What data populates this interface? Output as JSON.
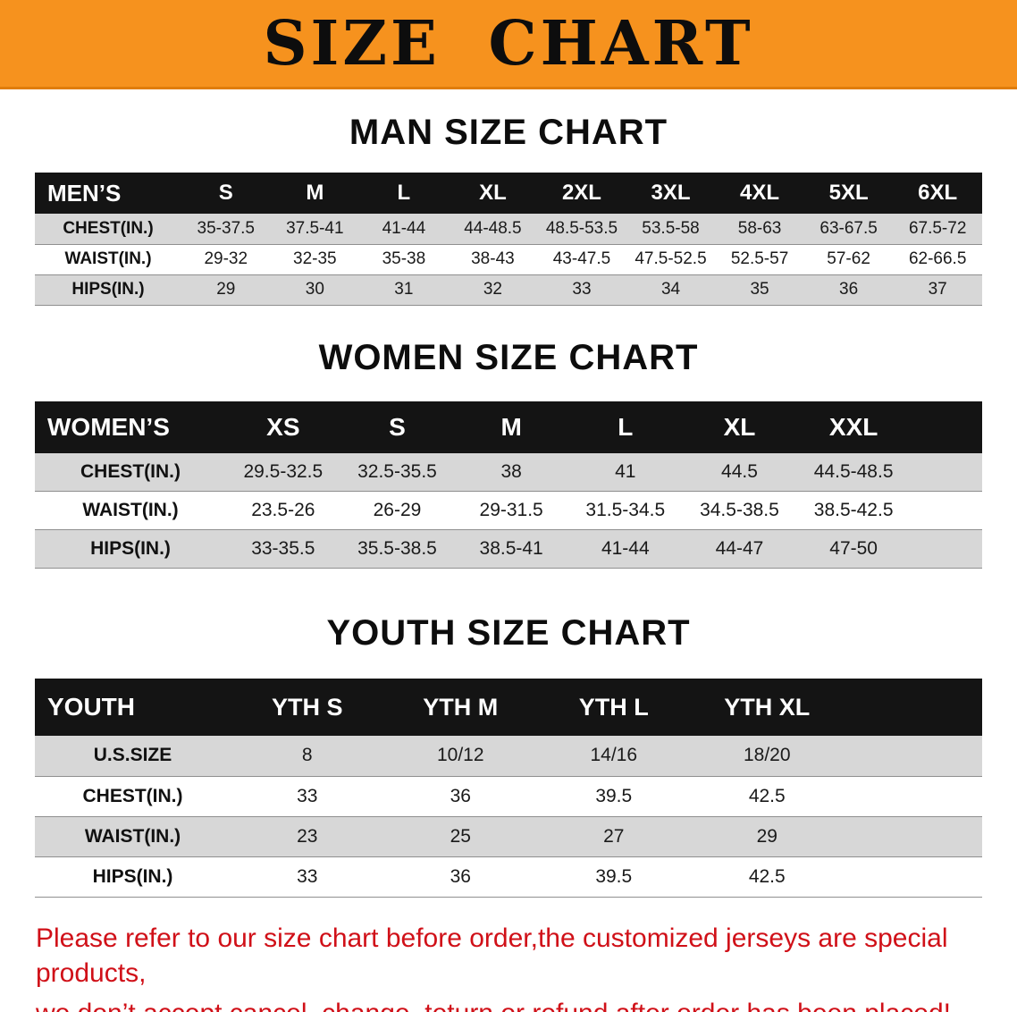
{
  "banner": {
    "title": "SIZE CHART",
    "bg_color": "#f6921e",
    "text_color": "#0d0d0d"
  },
  "sections": [
    {
      "id": "men",
      "heading": "MAN SIZE CHART",
      "table": {
        "header": [
          "MEN’S",
          "S",
          "M",
          "L",
          "XL",
          "2XL",
          "3XL",
          "4XL",
          "5XL",
          "6XL"
        ],
        "rows": [
          {
            "label": "CHEST(IN.)",
            "values": [
              "35-37.5",
              "37.5-41",
              "41-44",
              "44-48.5",
              "48.5-53.5",
              "53.5-58",
              "58-63",
              "63-67.5",
              "67.5-72"
            ]
          },
          {
            "label": "WAIST(IN.)",
            "values": [
              "29-32",
              "32-35",
              "35-38",
              "38-43",
              "43-47.5",
              "47.5-52.5",
              "52.5-57",
              "57-62",
              "62-66.5"
            ]
          },
          {
            "label": "HIPS(IN.)",
            "values": [
              "29",
              "30",
              "31",
              "32",
              "33",
              "34",
              "35",
              "36",
              "37"
            ]
          }
        ]
      }
    },
    {
      "id": "women",
      "heading": "WOMEN SIZE CHART",
      "table": {
        "header": [
          "WOMEN’S",
          "XS",
          "S",
          "M",
          "L",
          "XL",
          "XXL"
        ],
        "rows": [
          {
            "label": "CHEST(IN.)",
            "values": [
              "29.5-32.5",
              "32.5-35.5",
              "38",
              "41",
              "44.5",
              "44.5-48.5"
            ]
          },
          {
            "label": "WAIST(IN.)",
            "values": [
              "23.5-26",
              "26-29",
              "29-31.5",
              "31.5-34.5",
              "34.5-38.5",
              "38.5-42.5"
            ]
          },
          {
            "label": "HIPS(IN.)",
            "values": [
              "33-35.5",
              "35.5-38.5",
              "38.5-41",
              "41-44",
              "44-47",
              "47-50"
            ]
          }
        ]
      }
    },
    {
      "id": "youth",
      "heading": "YOUTH SIZE CHART",
      "table": {
        "header": [
          "YOUTH",
          "YTH S",
          "YTH M",
          "YTH L",
          "YTH XL"
        ],
        "rows": [
          {
            "label": "U.S.SIZE",
            "values": [
              "8",
              "10/12",
              "14/16",
              "18/20"
            ]
          },
          {
            "label": "CHEST(IN.)",
            "values": [
              "33",
              "36",
              "39.5",
              "42.5"
            ]
          },
          {
            "label": "WAIST(IN.)",
            "values": [
              "23",
              "25",
              "27",
              "29"
            ]
          },
          {
            "label": "HIPS(IN.)",
            "values": [
              "33",
              "36",
              "39.5",
              "42.5"
            ]
          }
        ]
      }
    }
  ],
  "footer": {
    "line1": "Please refer to our size chart before order,the customized jerseys are special products,",
    "line2": "we don’t accept cancel, change, teturn or refund after order has been placed!",
    "text_color": "#d01018"
  },
  "colors": {
    "table_header_bg": "#141414",
    "table_header_text": "#ffffff",
    "row_alt_bg": "#d7d7d7",
    "row_bg": "#ffffff"
  }
}
